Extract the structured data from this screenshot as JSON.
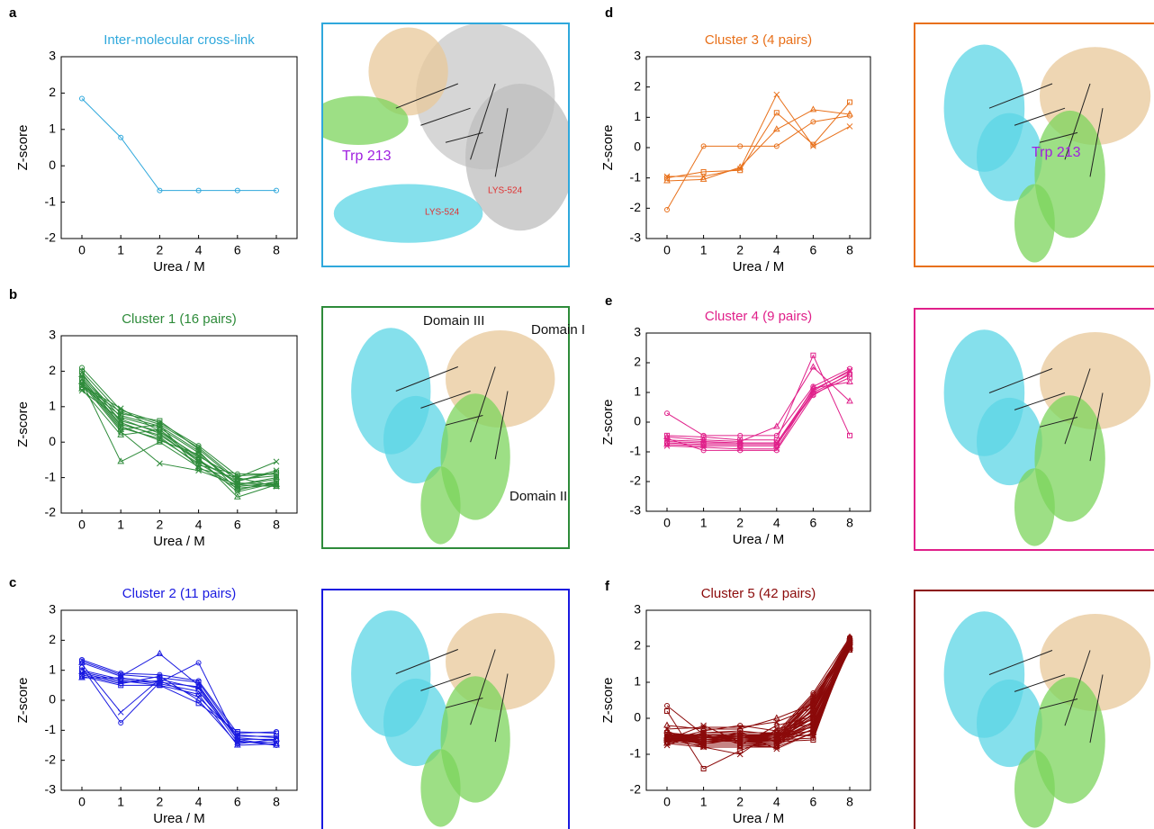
{
  "chart_data": [
    {
      "type": "line",
      "panel": "a",
      "title": "Inter-molecular cross-link",
      "xlabel": "Urea / M",
      "ylabel": "Z-score",
      "color": "#2fa8dc",
      "categories": [
        "0",
        "1",
        "2",
        "4",
        "6",
        "8"
      ],
      "ylim": [
        -2,
        3
      ],
      "yticks": [
        -2,
        -1,
        0,
        1,
        2,
        3
      ],
      "series": [
        {
          "values": [
            1.85,
            0.78,
            -0.68,
            -0.68,
            -0.68,
            -0.68
          ]
        }
      ],
      "annotations": [
        "Trp 213",
        "LYS-524",
        "LYS-524"
      ]
    },
    {
      "type": "line",
      "panel": "b",
      "title": "Cluster 1 (16 pairs)",
      "xlabel": "Urea / M",
      "ylabel": "Z-score",
      "color": "#2e8b3a",
      "categories": [
        "0",
        "1",
        "2",
        "4",
        "6",
        "8"
      ],
      "ylim": [
        -2,
        3
      ],
      "yticks": [
        -2,
        -1,
        0,
        1,
        2,
        3
      ],
      "series": [
        {
          "values": [
            2.1,
            0.9,
            0.55,
            -0.1,
            -0.95,
            -0.9
          ]
        },
        {
          "values": [
            2.0,
            0.8,
            0.6,
            -0.2,
            -1.1,
            -0.85
          ]
        },
        {
          "values": [
            1.9,
            0.7,
            0.4,
            -0.3,
            -1.2,
            -1.0
          ]
        },
        {
          "values": [
            1.85,
            0.6,
            0.3,
            -0.4,
            -1.0,
            -0.55
          ]
        },
        {
          "values": [
            1.8,
            0.5,
            0.2,
            -0.5,
            -1.15,
            -1.2
          ]
        },
        {
          "values": [
            1.75,
            0.4,
            0.1,
            -0.6,
            -1.25,
            -1.15
          ]
        },
        {
          "values": [
            1.7,
            -0.55,
            0.0,
            -0.7,
            -1.3,
            -1.2
          ]
        },
        {
          "values": [
            1.65,
            0.3,
            -0.6,
            -0.8,
            -1.2,
            -1.25
          ]
        },
        {
          "values": [
            1.6,
            0.85,
            0.5,
            -0.15,
            -1.05,
            -0.95
          ]
        },
        {
          "values": [
            1.55,
            0.75,
            0.45,
            -0.25,
            -1.35,
            -1.1
          ]
        },
        {
          "values": [
            1.5,
            0.2,
            0.35,
            -0.45,
            -1.55,
            -1.2
          ]
        },
        {
          "values": [
            1.45,
            0.65,
            0.25,
            -0.55,
            -1.1,
            -0.8
          ]
        },
        {
          "values": [
            1.95,
            0.55,
            0.15,
            -0.65,
            -0.9,
            -0.9
          ]
        },
        {
          "values": [
            1.8,
            0.45,
            0.05,
            -0.35,
            -1.2,
            -1.05
          ]
        },
        {
          "values": [
            1.7,
            0.35,
            0.5,
            -0.75,
            -1.0,
            -1.25
          ]
        },
        {
          "values": [
            1.6,
            0.95,
            0.3,
            -0.5,
            -1.4,
            -1.15
          ]
        }
      ],
      "annotations": [
        "Domain III",
        "Domain I",
        "Domain II"
      ]
    },
    {
      "type": "line",
      "panel": "c",
      "title": "Cluster 2 (11 pairs)",
      "xlabel": "Urea / M",
      "ylabel": "Z-score",
      "color": "#1a1ae0",
      "categories": [
        "0",
        "1",
        "2",
        "4",
        "6",
        "8"
      ],
      "ylim": [
        -3,
        3
      ],
      "yticks": [
        -3,
        -2,
        -1,
        0,
        1,
        2,
        3
      ],
      "series": [
        {
          "values": [
            1.35,
            0.9,
            0.85,
            0.65,
            -1.1,
            -1.05
          ]
        },
        {
          "values": [
            1.3,
            0.85,
            0.75,
            0.6,
            -1.2,
            -1.2
          ]
        },
        {
          "values": [
            1.25,
            0.8,
            1.55,
            0.5,
            -1.3,
            -1.3
          ]
        },
        {
          "values": [
            1.2,
            -0.4,
            0.7,
            0.4,
            -1.4,
            -1.4
          ]
        },
        {
          "values": [
            1.1,
            -0.75,
            0.6,
            1.25,
            -1.35,
            -1.5
          ]
        },
        {
          "values": [
            1.0,
            0.7,
            0.55,
            0.3,
            -1.25,
            -1.35
          ]
        },
        {
          "values": [
            0.95,
            0.65,
            0.5,
            0.2,
            -1.5,
            -1.45
          ]
        },
        {
          "values": [
            0.9,
            0.6,
            0.65,
            0.1,
            -1.15,
            -1.25
          ]
        },
        {
          "values": [
            0.85,
            0.55,
            0.8,
            0.0,
            -1.45,
            -1.3
          ]
        },
        {
          "values": [
            0.8,
            0.5,
            0.5,
            -0.1,
            -1.05,
            -1.1
          ]
        },
        {
          "values": [
            0.75,
            0.75,
            0.6,
            0.45,
            -1.3,
            -1.5
          ]
        }
      ],
      "annotations": []
    },
    {
      "type": "line",
      "panel": "d",
      "title": "Cluster 3 (4 pairs)",
      "xlabel": "Urea / M",
      "ylabel": "Z-score",
      "color": "#e8701a",
      "categories": [
        "0",
        "1",
        "2",
        "4",
        "6",
        "8"
      ],
      "ylim": [
        -3,
        3
      ],
      "yticks": [
        -3,
        -2,
        -1,
        0,
        1,
        2,
        3
      ],
      "series": [
        {
          "values": [
            -2.05,
            0.05,
            0.05,
            0.05,
            0.85,
            1.05
          ]
        },
        {
          "values": [
            -1.0,
            -0.8,
            -0.75,
            1.15,
            0.1,
            1.5
          ]
        },
        {
          "values": [
            -1.1,
            -1.05,
            -0.65,
            0.6,
            1.25,
            1.1
          ]
        },
        {
          "values": [
            -0.95,
            -0.95,
            -0.7,
            1.75,
            0.05,
            0.7
          ]
        }
      ],
      "annotations": [
        "Trp 213"
      ]
    },
    {
      "type": "line",
      "panel": "e",
      "title": "Cluster 4 (9 pairs)",
      "xlabel": "Urea / M",
      "ylabel": "Z-score",
      "color": "#e0208a",
      "categories": [
        "0",
        "1",
        "2",
        "4",
        "6",
        "8"
      ],
      "ylim": [
        -3,
        3
      ],
      "yticks": [
        -3,
        -2,
        -1,
        0,
        1,
        2,
        3
      ],
      "series": [
        {
          "values": [
            0.3,
            -0.45,
            -0.45,
            -0.45,
            1.2,
            1.8
          ]
        },
        {
          "values": [
            -0.45,
            -0.5,
            -0.6,
            -0.6,
            2.25,
            -0.45
          ]
        },
        {
          "values": [
            -0.5,
            -0.6,
            -0.65,
            -0.15,
            1.85,
            0.7
          ]
        },
        {
          "values": [
            -0.6,
            -0.65,
            -0.7,
            -0.7,
            1.1,
            1.7
          ]
        },
        {
          "values": [
            -0.65,
            -0.7,
            -0.7,
            -0.7,
            1.0,
            1.6
          ]
        },
        {
          "values": [
            -0.7,
            -0.75,
            -0.75,
            -0.75,
            0.95,
            1.5
          ]
        },
        {
          "values": [
            -0.75,
            -0.8,
            -0.8,
            -0.8,
            1.15,
            1.35
          ]
        },
        {
          "values": [
            -0.8,
            -0.85,
            -0.9,
            -0.9,
            1.05,
            1.75
          ]
        },
        {
          "values": [
            -0.55,
            -0.95,
            -0.95,
            -0.95,
            0.9,
            1.65
          ]
        }
      ],
      "annotations": []
    },
    {
      "type": "line",
      "panel": "f",
      "title": "Cluster 5 (42 pairs)",
      "xlabel": "Urea / M",
      "ylabel": "Z-score",
      "color": "#8b0a0a",
      "categories": [
        "0",
        "1",
        "2",
        "4",
        "6",
        "8"
      ],
      "ylim": [
        -2,
        3
      ],
      "yticks": [
        -2,
        -1,
        0,
        1,
        2,
        3
      ],
      "series": [
        {
          "values": [
            0.35,
            -0.45,
            -0.5,
            -0.4,
            0.7,
            2.25
          ]
        },
        {
          "values": [
            0.2,
            -1.4,
            -0.9,
            -0.5,
            0.5,
            2.2
          ]
        },
        {
          "values": [
            -0.2,
            -0.3,
            -0.3,
            0.0,
            0.4,
            2.15
          ]
        },
        {
          "values": [
            -0.3,
            -0.25,
            -0.25,
            -0.1,
            0.3,
            2.1
          ]
        },
        {
          "values": [
            -0.4,
            -0.5,
            -0.5,
            -0.5,
            0.2,
            2.05
          ]
        },
        {
          "values": [
            -0.45,
            -0.55,
            -0.55,
            -0.55,
            0.1,
            2.0
          ]
        },
        {
          "values": [
            -0.5,
            -0.6,
            -0.6,
            -0.6,
            0.0,
            1.95
          ]
        },
        {
          "values": [
            -0.55,
            -0.65,
            -0.65,
            -0.65,
            -0.1,
            1.9
          ]
        },
        {
          "values": [
            -0.6,
            -0.7,
            -0.7,
            -0.7,
            -0.2,
            2.1
          ]
        },
        {
          "values": [
            -0.65,
            -0.75,
            -0.75,
            -0.75,
            -0.3,
            2.05
          ]
        },
        {
          "values": [
            -0.7,
            -0.8,
            -0.8,
            -0.8,
            -0.4,
            2.2
          ]
        },
        {
          "values": [
            -0.75,
            -0.4,
            -0.4,
            -0.4,
            -0.5,
            2.15
          ]
        },
        {
          "values": [
            -0.5,
            -0.45,
            -0.45,
            -0.45,
            0.6,
            2.0
          ]
        },
        {
          "values": [
            -0.45,
            -0.5,
            -0.5,
            -0.5,
            0.55,
            1.95
          ]
        },
        {
          "values": [
            -0.55,
            -0.55,
            -0.55,
            -0.55,
            0.45,
            2.1
          ]
        },
        {
          "values": [
            -0.6,
            -0.6,
            -0.6,
            -0.6,
            0.35,
            2.05
          ]
        },
        {
          "values": [
            -0.5,
            -0.65,
            -0.65,
            -0.65,
            0.25,
            2.2
          ]
        },
        {
          "values": [
            -0.4,
            -0.7,
            -0.7,
            -0.7,
            0.15,
            1.9
          ]
        },
        {
          "values": [
            -0.35,
            -0.75,
            -0.75,
            -0.2,
            0.05,
            2.0
          ]
        },
        {
          "values": [
            -0.55,
            -0.8,
            -1.0,
            -0.3,
            -0.05,
            2.1
          ]
        },
        {
          "values": [
            -0.6,
            -0.35,
            -0.2,
            -0.35,
            -0.15,
            2.15
          ]
        },
        {
          "values": [
            -0.65,
            -0.4,
            -0.35,
            -0.45,
            -0.25,
            2.05
          ]
        },
        {
          "values": [
            -0.7,
            -0.45,
            -0.45,
            -0.5,
            -0.35,
            1.95
          ]
        },
        {
          "values": [
            -0.5,
            -0.5,
            -0.5,
            -0.55,
            -0.45,
            2.0
          ]
        },
        {
          "values": [
            -0.45,
            -0.55,
            -0.55,
            -0.6,
            -0.55,
            2.1
          ]
        },
        {
          "values": [
            -0.55,
            -0.6,
            -0.6,
            -0.65,
            -0.6,
            2.2
          ]
        },
        {
          "values": [
            -0.6,
            -0.65,
            -0.65,
            -0.7,
            0.5,
            2.25
          ]
        },
        {
          "values": [
            -0.5,
            -0.7,
            -0.7,
            -0.75,
            0.4,
            2.0
          ]
        },
        {
          "values": [
            -0.45,
            -0.75,
            -0.75,
            -0.8,
            0.3,
            1.9
          ]
        },
        {
          "values": [
            -0.55,
            -0.5,
            -0.55,
            -0.45,
            0.2,
            2.05
          ]
        },
        {
          "values": [
            -0.6,
            -0.55,
            -0.5,
            -0.5,
            0.1,
            2.15
          ]
        },
        {
          "values": [
            -0.65,
            -0.6,
            -0.55,
            -0.55,
            0.0,
            2.1
          ]
        },
        {
          "values": [
            -0.5,
            -0.65,
            -0.6,
            -0.6,
            -0.1,
            1.95
          ]
        },
        {
          "values": [
            -0.45,
            -0.45,
            -0.65,
            -0.65,
            -0.2,
            2.0
          ]
        },
        {
          "values": [
            -0.55,
            -0.5,
            -0.7,
            -0.7,
            -0.3,
            2.2
          ]
        },
        {
          "values": [
            -0.6,
            -0.55,
            -0.45,
            -0.85,
            -0.4,
            2.05
          ]
        },
        {
          "values": [
            -0.5,
            -0.6,
            -0.5,
            -0.45,
            0.65,
            2.1
          ]
        },
        {
          "values": [
            -0.45,
            -0.65,
            -0.55,
            -0.5,
            0.45,
            2.15
          ]
        },
        {
          "values": [
            -0.55,
            -0.7,
            -0.6,
            -0.55,
            0.25,
            2.0
          ]
        },
        {
          "values": [
            -0.6,
            -0.2,
            -0.65,
            -0.6,
            0.05,
            1.95
          ]
        },
        {
          "values": [
            -0.5,
            -0.55,
            -0.4,
            -0.65,
            -0.15,
            2.1
          ]
        },
        {
          "values": [
            -0.55,
            -0.5,
            -0.5,
            -0.5,
            -0.35,
            2.0
          ]
        }
      ],
      "annotations": []
    }
  ]
}
